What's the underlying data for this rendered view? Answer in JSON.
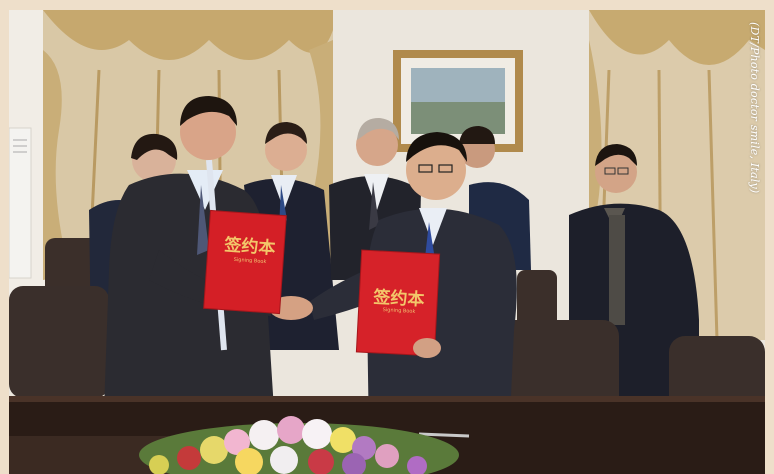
{
  "photo_credit": "(DT/Photo doctor smile, Italy)",
  "book_left": {
    "title": "签约本",
    "subtitle": "Signing Book"
  },
  "book_right": {
    "title": "签约本",
    "subtitle": "Signing Book"
  },
  "colors": {
    "border": "#eedfca",
    "wall": "#e8e2d8",
    "curtain": "#d8c4a0",
    "book_red": "#d41f26",
    "table": "#2a1c16",
    "chair": "#3a2e2a"
  }
}
